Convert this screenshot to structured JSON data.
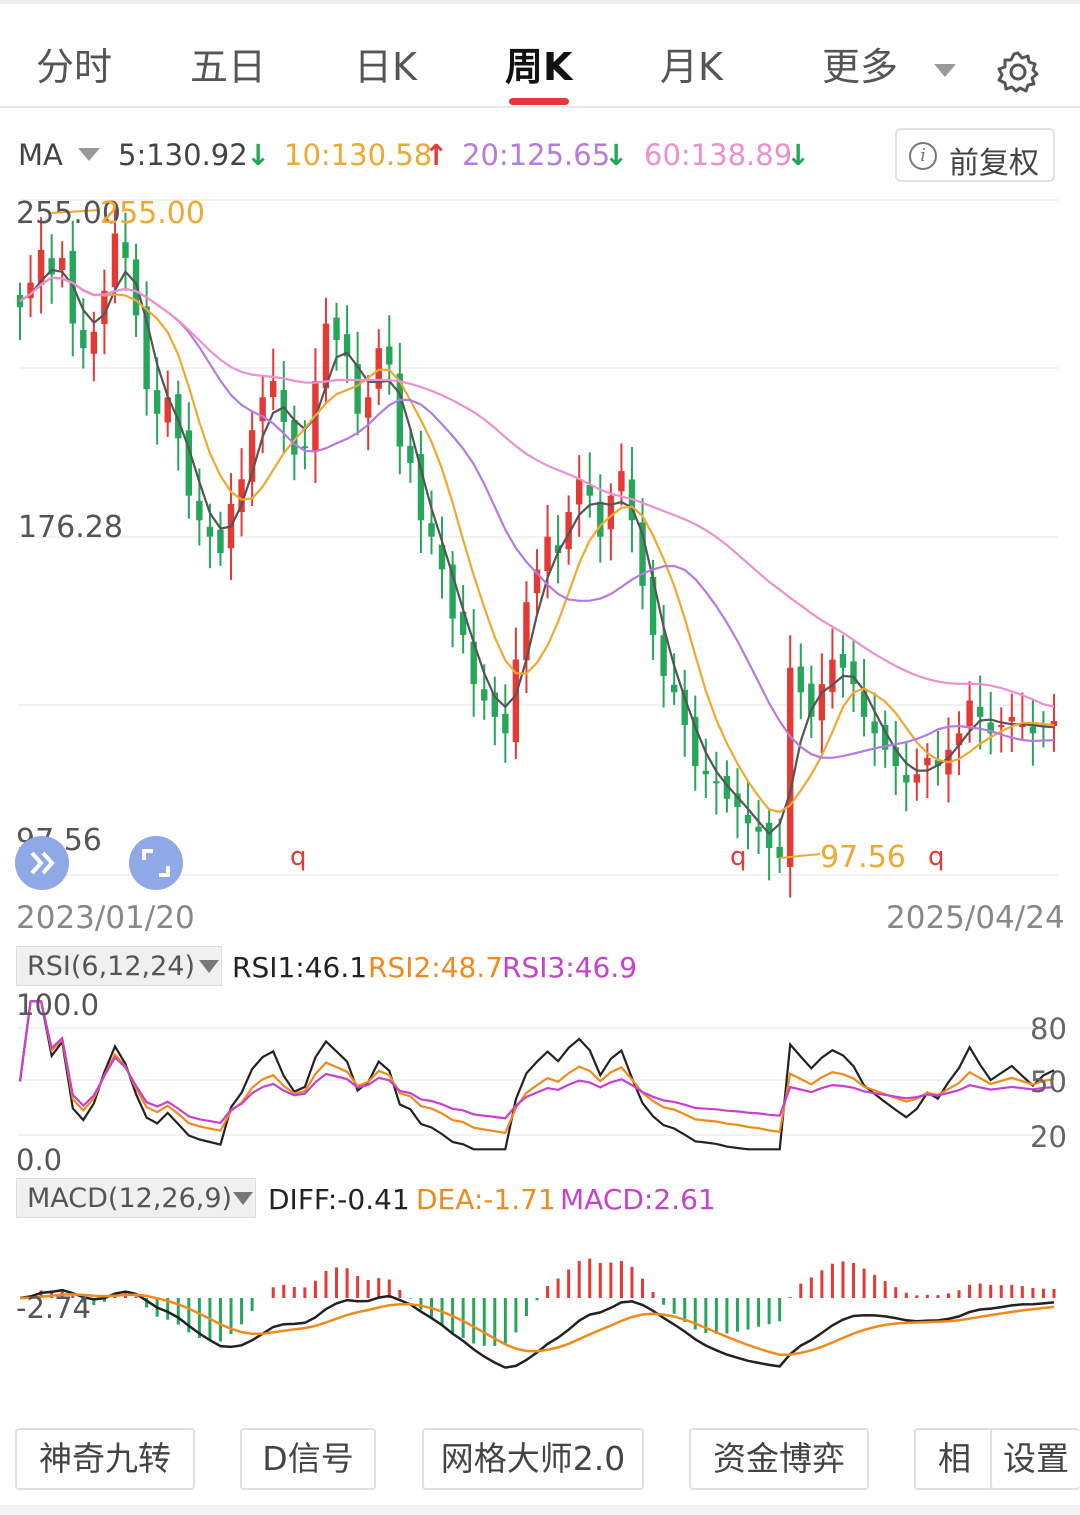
{
  "tabs": [
    {
      "label": "分时"
    },
    {
      "label": "五日"
    },
    {
      "label": "日K"
    },
    {
      "label": "周K",
      "active": true
    },
    {
      "label": "月K"
    },
    {
      "label": "更多"
    }
  ],
  "ma_bar": {
    "indicator": "MA",
    "ma5": "5:130.92",
    "ma10": "10:130.58",
    "ma20": "20:125.65",
    "ma60": "60:138.89",
    "arrow_down": "↓",
    "arrow_up": "↑",
    "adjust_label": "前复权"
  },
  "price_axis": {
    "top": "255.00",
    "mid": "176.28",
    "low": "97.56"
  },
  "high_marker": "255.00",
  "low_marker": "97.56",
  "q_marker": "q",
  "date_start": "2023/01/20",
  "date_end": "2025/04/24",
  "rsi": {
    "label": "RSI(6,12,24)",
    "rsi1": "RSI1:46.1",
    "rsi2": "RSI2:48.7",
    "rsi3": "RSI3:46.9",
    "max": "100.0",
    "min": "0.0",
    "r80": "80",
    "r50": "50",
    "r20": "20"
  },
  "macd": {
    "label": "MACD(12,26,9)",
    "diff": "DIFF:-0.41",
    "dea": "DEA:-1.71",
    "macd": "MACD:2.61",
    "axis_value": "-2.74"
  },
  "tools": [
    {
      "label": "神奇九转"
    },
    {
      "label": "D信号"
    },
    {
      "label": "网格大师2.0"
    },
    {
      "label": "资金博弈"
    },
    {
      "label": "相"
    },
    {
      "label": "设置"
    }
  ],
  "colors": {
    "up": "#e53935",
    "down": "#26a65b",
    "ma5": "#555555",
    "ma10": "#f0a830",
    "ma20": "#b57be0",
    "ma60": "#ee8fcf",
    "rsi1": "#222222",
    "rsi2": "#f08a1c",
    "rsi3": "#c93fd1"
  },
  "chart_data": [
    {
      "type": "candlestick",
      "x_range": [
        "2023/01/20",
        "2025/04/24"
      ],
      "ylim": [
        97.56,
        255.0
      ],
      "y_ticks": [
        255.0,
        176.28,
        97.56
      ],
      "annotations": [
        "255.00",
        "97.56"
      ],
      "series": [
        {
          "name": "MA5",
          "last": 130.92
        },
        {
          "name": "MA10",
          "last": 130.58
        },
        {
          "name": "MA20",
          "last": 125.65
        },
        {
          "name": "MA60",
          "last": 138.89
        }
      ],
      "closes_approx": [
        232,
        238,
        246,
        240,
        244,
        228,
        222,
        226,
        236,
        250,
        244,
        230,
        212,
        206,
        210,
        200,
        186,
        180,
        176,
        172,
        184,
        190,
        202,
        210,
        214,
        204,
        196,
        198,
        214,
        228,
        224,
        220,
        206,
        210,
        222,
        218,
        198,
        194,
        180,
        176,
        168,
        156,
        152,
        140,
        136,
        132,
        128,
        146,
        160,
        168,
        176,
        172,
        182,
        190,
        186,
        176,
        186,
        192,
        180,
        164,
        152,
        142,
        138,
        130,
        120,
        118,
        116,
        112,
        110,
        106,
        104,
        100,
        97.56,
        144,
        138,
        132,
        140,
        146,
        144,
        140,
        132,
        128,
        124,
        120,
        116,
        118,
        122,
        120,
        124,
        128,
        136,
        132,
        128,
        130,
        132,
        130,
        128,
        130,
        131
      ]
    },
    {
      "type": "line",
      "title": "RSI(6,12,24)",
      "ylim": [
        0,
        100
      ],
      "y_ticks": [
        80,
        50,
        20
      ],
      "series": [
        {
          "name": "RSI1",
          "last": 46.1
        },
        {
          "name": "RSI2",
          "last": 48.7
        },
        {
          "name": "RSI3",
          "last": 46.9
        }
      ]
    },
    {
      "type": "bar",
      "title": "MACD(12,26,9)",
      "y_ticks": [
        -2.74
      ],
      "series": [
        {
          "name": "DIFF",
          "last": -0.41
        },
        {
          "name": "DEA",
          "last": -1.71
        },
        {
          "name": "MACD",
          "last": 2.61
        }
      ]
    }
  ]
}
